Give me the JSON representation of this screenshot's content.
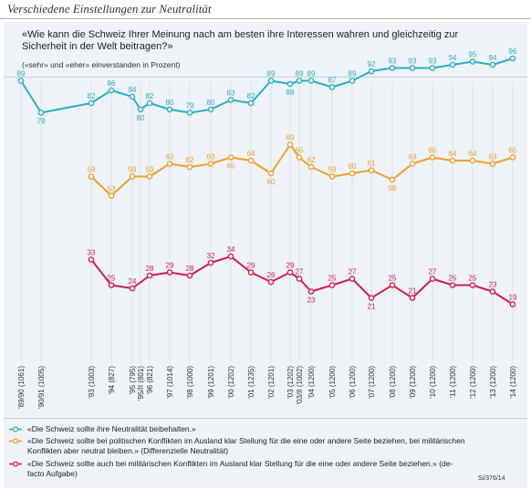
{
  "header": {
    "title": "Verschiedene Einstellungen zur Neutralität"
  },
  "question": "«Wie kann die Schweiz Ihrer Meinung nach am besten ihre Interessen wahren und gleichzeitig zur Sicherheit in der Welt beitragen?»",
  "subtitle": "(«sehr» und «eher» einverstanden  in Prozent)",
  "source": "Si/376/14",
  "chart_data": {
    "type": "line",
    "ylim": [
      0,
      100
    ],
    "grid": true,
    "legend_placement": "bottom",
    "x": [
      "'89/90 (1061)",
      "'90/91 (1005)",
      "'93 (1003)",
      "'94 (827)",
      "'95 (795)",
      "'95/II (801)",
      "'96 (821)",
      "'97 (1014)",
      "'98 (1000)",
      "'99 (1201)",
      "'00 (1202)",
      "'01 (1235)",
      "'02 (1201)",
      "'03 (1202)",
      "'03/II (1002)",
      "'04 (1200)",
      "'05 (1200)",
      "'06 (1200)",
      "'07 (1200)",
      "'08 (1200)",
      "'09 (1200)",
      "'10 (1200)",
      "'11 (1200)",
      "'12 (1200)",
      "'13 (1200)",
      "'14 (1200)"
    ],
    "series": [
      {
        "name": "«Die Schweiz sollte ihre Neutralität beibehalten.»",
        "color": "#2aaec6",
        "values": [
          89,
          79,
          82,
          86,
          84,
          80,
          82,
          80,
          79,
          80,
          83,
          82,
          89,
          88,
          89,
          89,
          87,
          89,
          92,
          93,
          93,
          93,
          94,
          95,
          94,
          96
        ]
      },
      {
        "name": "«Die Schweiz sollte bei politischen Konflikten im Ausland klar Stellung für die eine oder andere Seite beziehen, bei militärischen Konflikten aber neutral bleiben.» (Differenzielle Neutralität)",
        "color": "#eea02c",
        "values": [
          null,
          null,
          59,
          53,
          59,
          null,
          59,
          63,
          62,
          63,
          65,
          64,
          60,
          69,
          65,
          62,
          59,
          60,
          61,
          58,
          63,
          65,
          64,
          64,
          63,
          65
        ]
      },
      {
        "name": "«Die Schweiz sollte auch bei militärischen Konflikten im Ausland klar Stellung für die eine oder andere Seite beziehen.» (de-facto Aufgabe)",
        "color": "#d41f4a",
        "values": [
          null,
          null,
          33,
          25,
          24,
          null,
          28,
          29,
          28,
          32,
          34,
          29,
          26,
          29,
          27,
          23,
          25,
          27,
          21,
          25,
          21,
          27,
          25,
          25,
          23,
          19
        ]
      }
    ]
  }
}
